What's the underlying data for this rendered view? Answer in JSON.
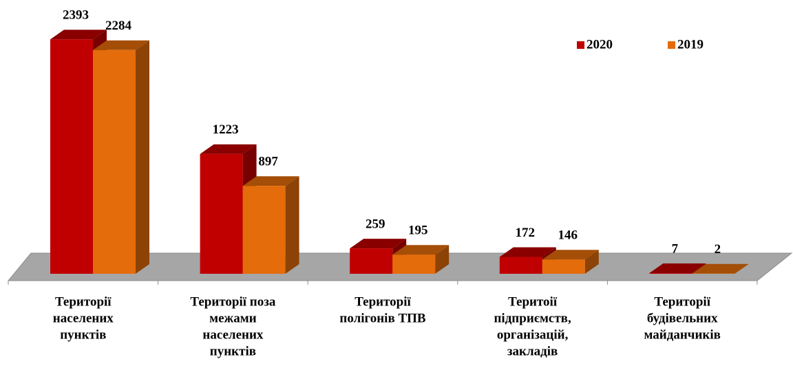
{
  "chart_data": {
    "type": "bar3d",
    "categories": [
      [
        "Території",
        "населених",
        "пунктів"
      ],
      [
        "Території поза",
        "межами",
        "населених",
        "пунктів"
      ],
      [
        "Території",
        "полігонів ТПВ"
      ],
      [
        "Теритоії",
        "підприємств,",
        "організацій,",
        "закладів"
      ],
      [
        "Території",
        "будівельних",
        "майданчиків"
      ]
    ],
    "series": [
      {
        "name": "2020",
        "color": "#c00000",
        "values": [
          2393,
          1223,
          259,
          172,
          7
        ]
      },
      {
        "name": "2019",
        "color": "#e46c0a",
        "values": [
          2284,
          897,
          195,
          146,
          2
        ]
      }
    ],
    "ylim": [
      0,
      2500
    ],
    "legend": "top-right"
  }
}
